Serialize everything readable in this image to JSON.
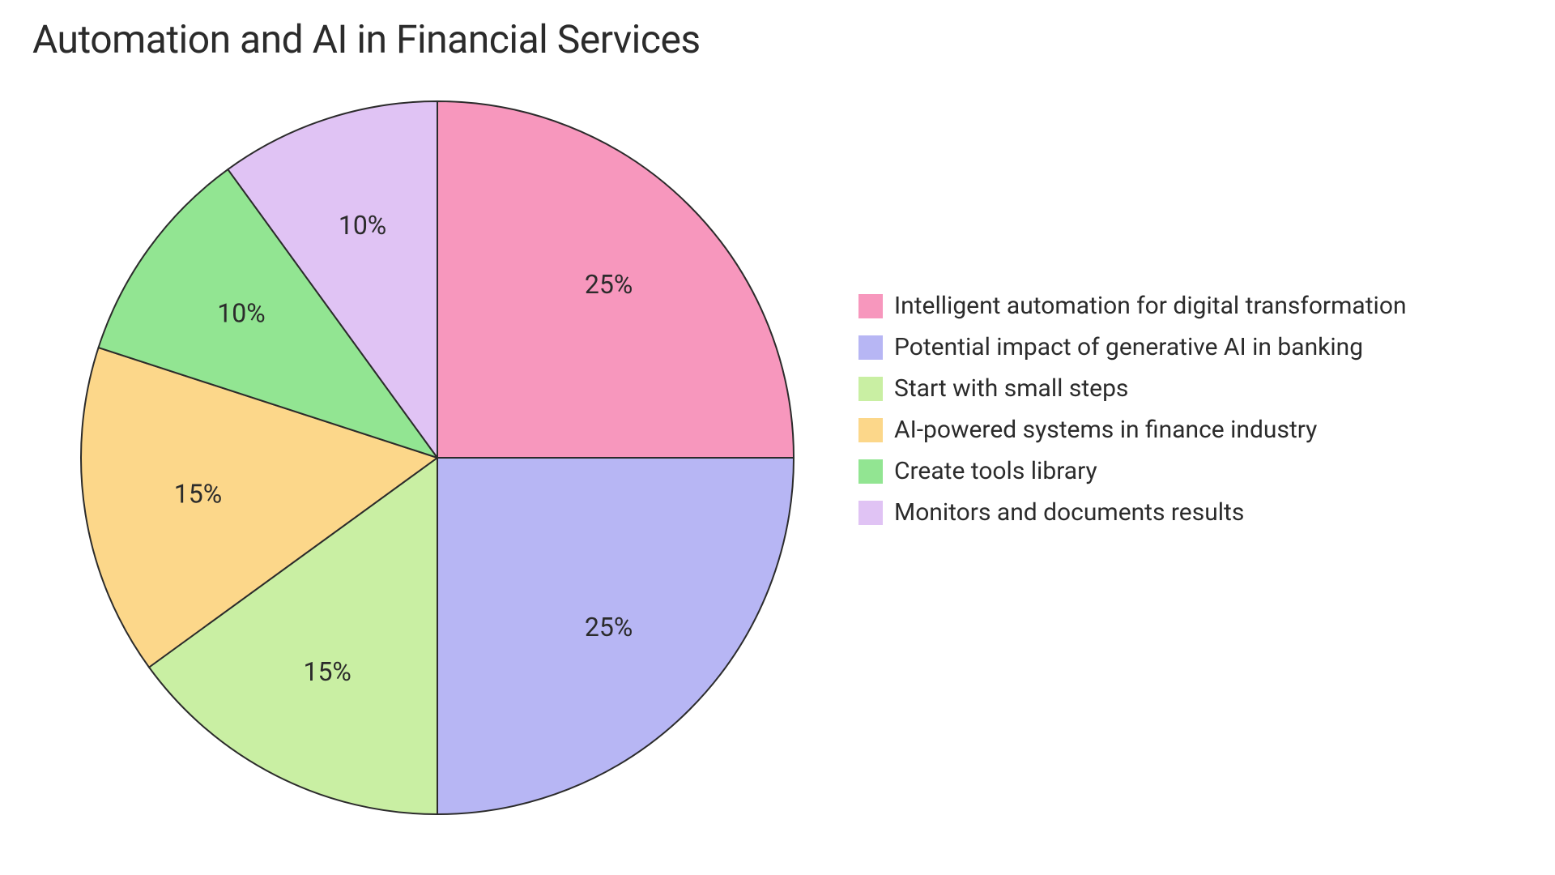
{
  "chart": {
    "type": "pie",
    "title": "Automation and AI in Financial Services",
    "title_fontsize": 48,
    "title_color": "#2b2b2b",
    "background_color": "#ffffff",
    "stroke_color": "#2b2b2b",
    "stroke_width": 2,
    "radius": 440,
    "start_angle": -90,
    "label_fontsize": 32,
    "label_color": "#2b2b2b",
    "label_radius_ratio": 0.68,
    "legend_fontsize": 30,
    "legend_swatch_size": 30,
    "slices": [
      {
        "label": "Intelligent automation for digital transformation",
        "value": 25,
        "display": "25%",
        "color": "#f797bd"
      },
      {
        "label": "Potential impact of generative AI in banking",
        "value": 25,
        "display": "25%",
        "color": "#b7b6f4"
      },
      {
        "label": "Start with small steps",
        "value": 15,
        "display": "15%",
        "color": "#c9efa3"
      },
      {
        "label": "AI-powered systems in finance industry",
        "value": 15,
        "display": "15%",
        "color": "#fcd78a"
      },
      {
        "label": "Create tools library",
        "value": 10,
        "display": "10%",
        "color": "#92e592"
      },
      {
        "label": "Monitors and documents results",
        "value": 10,
        "display": "10%",
        "color": "#e0c3f4"
      }
    ]
  }
}
